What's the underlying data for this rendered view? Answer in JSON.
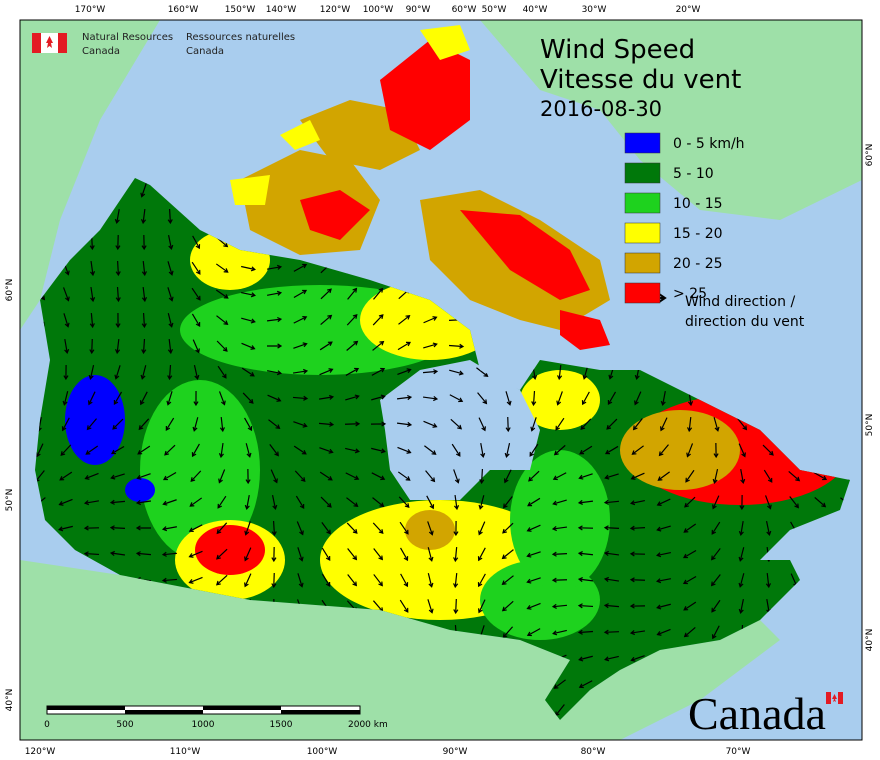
{
  "header": {
    "org_en": [
      "Natural Resources",
      "Canada"
    ],
    "org_fr": [
      "Ressources naturelles",
      "Canada"
    ]
  },
  "title": {
    "lines": [
      "Wind Speed",
      "Vitesse du vent"
    ],
    "date": "2016-08-30"
  },
  "legend": {
    "items": [
      {
        "label": "0 - 5 km/h",
        "color": "#0000ff"
      },
      {
        "label": "5 - 10",
        "color": "#00780a"
      },
      {
        "label": "10 - 15",
        "color": "#1ed21e"
      },
      {
        "label": "15 - 20",
        "color": "#ffff00"
      },
      {
        "label": "20 - 25",
        "color": "#d2a500"
      },
      {
        "label": "> 25",
        "color": "#ff0000"
      }
    ],
    "arrow": [
      "Wind direction /",
      "direction du vent"
    ]
  },
  "graticule": {
    "top": [
      "170°W",
      "160°W",
      "150°W",
      "140°W",
      "120°W",
      "100°W",
      "90°W",
      "60°W",
      "50°W",
      "40°W",
      "30°W",
      "20°W"
    ],
    "bottom": [
      "120°W",
      "110°W",
      "100°W",
      "90°W",
      "80°W",
      "70°W"
    ],
    "left": [
      "60°N",
      "50°N",
      "40°N"
    ],
    "right": [
      "60°N",
      "50°N",
      "40°N"
    ]
  },
  "scale_bar": {
    "labels": [
      "0",
      "500",
      "1000",
      "1500",
      "2000  km"
    ]
  },
  "wordmark": "Canada"
}
